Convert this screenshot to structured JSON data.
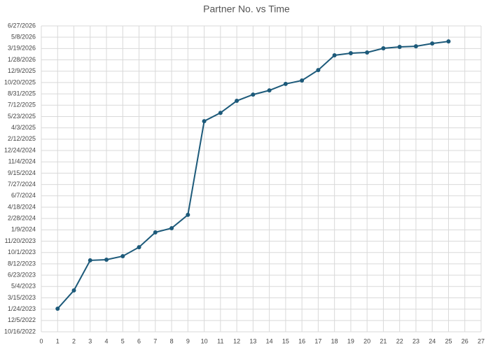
{
  "chart_data": {
    "type": "line",
    "title": "Partner No. vs Time",
    "x": [
      1,
      2,
      3,
      4,
      5,
      6,
      7,
      8,
      9,
      10,
      11,
      12,
      13,
      14,
      15,
      16,
      17,
      18,
      19,
      20,
      21,
      22,
      23,
      24,
      25
    ],
    "series": [
      {
        "color": "#1d5a7a",
        "values": [
          44950,
          45029,
          45159,
          45162,
          45177,
          45216,
          45280,
          45298,
          45356,
          45761,
          45797,
          45849,
          45876,
          45894,
          45922,
          45937,
          45982,
          46046,
          46055,
          46058,
          46076,
          46082,
          46085,
          46097,
          46106
        ]
      }
    ],
    "xlim": [
      0,
      27
    ],
    "xticks": [
      0,
      1,
      2,
      3,
      4,
      5,
      6,
      7,
      8,
      9,
      10,
      11,
      12,
      13,
      14,
      15,
      16,
      17,
      18,
      19,
      20,
      21,
      22,
      23,
      24,
      25,
      26,
      27
    ],
    "ylim": [
      44850,
      46173
    ],
    "yticks": [
      {
        "value": 44850,
        "label": "10/16/2022"
      },
      {
        "value": 44899,
        "label": "12/5/2022"
      },
      {
        "value": 44948,
        "label": "1/24/2023"
      },
      {
        "value": 44997,
        "label": "3/15/2023"
      },
      {
        "value": 45046,
        "label": "5/4/2023"
      },
      {
        "value": 45095,
        "label": "6/23/2023"
      },
      {
        "value": 45144,
        "label": "8/12/2023"
      },
      {
        "value": 45193,
        "label": "10/1/2023"
      },
      {
        "value": 45242,
        "label": "11/20/2023"
      },
      {
        "value": 45291,
        "label": "1/9/2024"
      },
      {
        "value": 45340,
        "label": "2/28/2024"
      },
      {
        "value": 45389,
        "label": "4/18/2024"
      },
      {
        "value": 45438,
        "label": "6/7/2024"
      },
      {
        "value": 45487,
        "label": "7/27/2024"
      },
      {
        "value": 45536,
        "label": "9/15/2024"
      },
      {
        "value": 45585,
        "label": "11/4/2024"
      },
      {
        "value": 45634,
        "label": "12/24/2024"
      },
      {
        "value": 45683,
        "label": "2/12/2025"
      },
      {
        "value": 45732,
        "label": "4/3/2025"
      },
      {
        "value": 45781,
        "label": "5/23/2025"
      },
      {
        "value": 45830,
        "label": "7/12/2025"
      },
      {
        "value": 45879,
        "label": "8/31/2025"
      },
      {
        "value": 45928,
        "label": "10/20/2025"
      },
      {
        "value": 45977,
        "label": "12/9/2025"
      },
      {
        "value": 46026,
        "label": "1/28/2026"
      },
      {
        "value": 46075,
        "label": "3/19/2026"
      },
      {
        "value": 46124,
        "label": "5/8/2026"
      },
      {
        "value": 46173,
        "label": "6/27/2026"
      }
    ],
    "grid": true
  }
}
